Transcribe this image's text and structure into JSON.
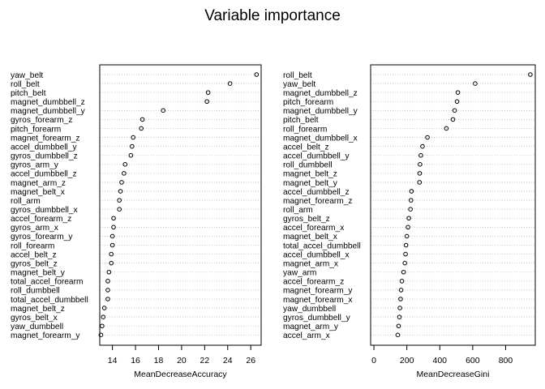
{
  "title": "Variable importance",
  "colors": {
    "frame": "#000000",
    "grid": "#bebebe",
    "point": "#000000",
    "background": "#ffffff"
  },
  "chart_data": [
    {
      "type": "dotchart",
      "xlabel": "MeanDecreaseAccuracy",
      "xlim": [
        12.9,
        26.9
      ],
      "xticks": [
        14,
        16,
        18,
        20,
        22,
        24,
        26
      ],
      "grid": "dotted horizontal lines",
      "categories": [
        "yaw_belt",
        "roll_belt",
        "pitch_belt",
        "magnet_dumbbell_z",
        "magnet_dumbbell_y",
        "gyros_forearm_z",
        "pitch_forearm",
        "magnet_forearm_z",
        "accel_dumbbell_y",
        "gyros_dumbbell_z",
        "gyros_arm_y",
        "accel_dumbbell_z",
        "magnet_arm_z",
        "magnet_belt_x",
        "roll_arm",
        "gyros_dumbbell_x",
        "accel_forearm_z",
        "gyros_arm_x",
        "gyros_forearm_y",
        "roll_forearm",
        "accel_belt_z",
        "gyros_belt_z",
        "magnet_belt_y",
        "total_accel_forearm",
        "roll_dumbbell",
        "total_accel_dumbbell",
        "magnet_belt_z",
        "gyros_belt_x",
        "yaw_dumbbell",
        "magnet_forearm_y"
      ],
      "values": [
        26.5,
        24.2,
        22.3,
        22.2,
        18.4,
        16.6,
        16.5,
        15.8,
        15.7,
        15.6,
        15.1,
        15.0,
        14.8,
        14.7,
        14.6,
        14.6,
        14.1,
        14.1,
        14.0,
        14.0,
        13.9,
        13.9,
        13.7,
        13.6,
        13.6,
        13.6,
        13.3,
        13.2,
        13.1,
        13.0
      ]
    },
    {
      "type": "dotchart",
      "xlabel": "MeanDecreaseGini",
      "xlim": [
        -20,
        980
      ],
      "xticks": [
        0,
        200,
        400,
        600,
        800
      ],
      "grid": "dotted horizontal lines",
      "categories": [
        "roll_belt",
        "yaw_belt",
        "magnet_dumbbell_z",
        "pitch_forearm",
        "magnet_dumbbell_y",
        "pitch_belt",
        "roll_forearm",
        "magnet_dumbbell_x",
        "accel_belt_z",
        "accel_dumbbell_y",
        "roll_dumbbell",
        "magnet_belt_z",
        "magnet_belt_y",
        "accel_dumbbell_z",
        "magnet_forearm_z",
        "roll_arm",
        "gyros_belt_z",
        "accel_forearm_x",
        "magnet_belt_x",
        "total_accel_dumbbell",
        "accel_dumbbell_x",
        "magnet_arm_x",
        "yaw_arm",
        "accel_forearm_z",
        "magnet_forearm_y",
        "magnet_forearm_x",
        "yaw_dumbbell",
        "gyros_dumbbell_y",
        "magnet_arm_y",
        "accel_arm_x"
      ],
      "values": [
        950,
        615,
        510,
        505,
        490,
        480,
        440,
        325,
        295,
        285,
        280,
        278,
        277,
        228,
        225,
        222,
        212,
        207,
        200,
        195,
        192,
        188,
        180,
        170,
        165,
        162,
        158,
        155,
        150,
        145
      ]
    }
  ]
}
